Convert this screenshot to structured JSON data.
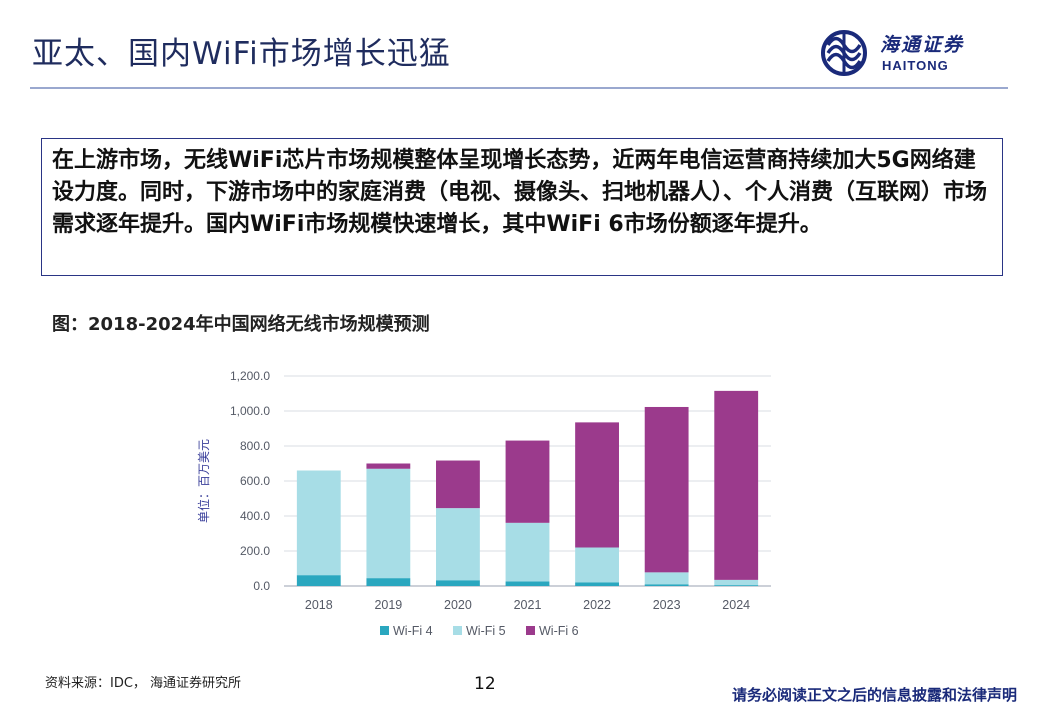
{
  "slide": {
    "title": "亚太、国内WiFi市场增长迅猛",
    "summary": "在上游市场，无线WiFi芯片市场规模整体呈现增长态势，近两年电信运营商持续加大5G网络建设力度。同时，下游市场中的家庭消费（电视、摄像头、扫地机器人）、个人消费（互联网）市场需求逐年提升。国内WiFi市场规模快速增长，其中WiFi 6市场份额逐年提升。",
    "figure_caption": "图：2018-2024年中国网络无线市场规模预测"
  },
  "logo": {
    "name_cn": "海通证券",
    "name_en": "HAITONG",
    "color": "#1a2a7a"
  },
  "footer": {
    "source": "资料来源：IDC， 海通证券研究所",
    "page_number": "12",
    "disclaimer": "请务必阅读正文之后的信息披露和法律声明"
  },
  "chart_data": {
    "type": "bar",
    "stacked": true,
    "categories": [
      "2018",
      "2019",
      "2020",
      "2021",
      "2022",
      "2023",
      "2024"
    ],
    "series": [
      {
        "name": "Wi-Fi 4",
        "color": "#2aa7bf",
        "values": [
          62,
          45,
          33,
          26,
          20,
          10,
          5
        ]
      },
      {
        "name": "Wi-Fi 5",
        "color": "#a7dde6",
        "values": [
          598,
          625,
          412,
          335,
          200,
          68,
          30
        ]
      },
      {
        "name": "Wi-Fi 6",
        "color": "#9b3a8c",
        "values": [
          0,
          30,
          272,
          470,
          715,
          945,
          1080
        ]
      }
    ],
    "y_ticks": [
      "0.0",
      "200.0",
      "400.0",
      "600.0",
      "800.0",
      "1,000.0",
      "1,200.0"
    ],
    "ylim": [
      0,
      1200
    ],
    "ylabel": "单位：百万美元",
    "xlabel": "",
    "grid": true,
    "legend_position": "bottom"
  }
}
